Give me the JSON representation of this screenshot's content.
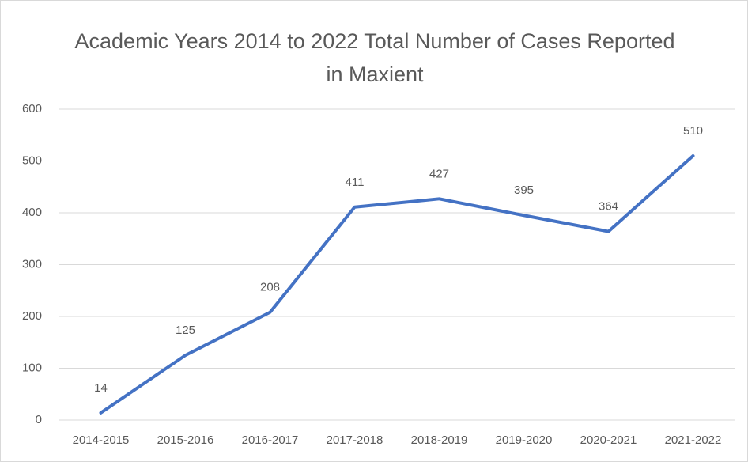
{
  "chart_data": {
    "type": "line",
    "title": "Academic Years 2014 to 2022 Total Number of Cases Reported in Maxient",
    "categories": [
      "2014-2015",
      "2015-2016",
      "2016-2017",
      "2017-2018",
      "2018-2019",
      "2019-2020",
      "2020-2021",
      "2021-2022"
    ],
    "values": [
      14,
      125,
      208,
      411,
      427,
      395,
      364,
      510
    ],
    "color": "#4472c4",
    "ylim": [
      0,
      600
    ],
    "yticks": [
      0,
      100,
      200,
      300,
      400,
      500,
      600
    ],
    "grid": true
  }
}
